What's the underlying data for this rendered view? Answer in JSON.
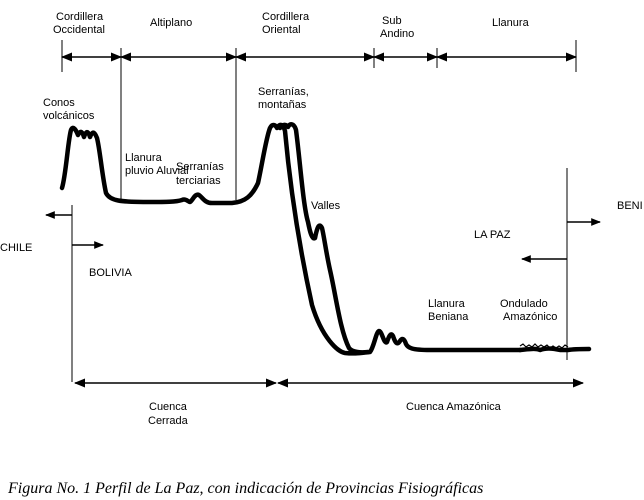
{
  "provinces": {
    "cordillera_occidental": [
      "Cordillera",
      "Occidental"
    ],
    "altiplano": "Altiplano",
    "cordillera_oriental": [
      "Cordillera",
      "Oriental"
    ],
    "sub_andino": [
      "Sub",
      "Andino"
    ],
    "llanura": "Llanura"
  },
  "features": {
    "conos_volcanicos": [
      "Conos",
      "volcánicos"
    ],
    "llanura_pluvio_aluvial": [
      "Llanura",
      "pluvio Aluvial"
    ],
    "serranias_terciarias": [
      "Serranías",
      "terciarias"
    ],
    "serranias_montanas": [
      "Serranías,",
      "montañas"
    ],
    "valles": "Valles",
    "llanura_beniana": [
      "Llanura",
      "Beniana"
    ],
    "ondulado_amazonico": [
      "Ondulado",
      "Amazónico"
    ]
  },
  "regions": {
    "chile": "CHILE",
    "bolivia": "BOLIVIA",
    "la_paz": "LA PAZ",
    "beni": "BENI"
  },
  "basins": {
    "cuenca_cerrada": [
      "Cuenca",
      "Cerrada"
    ],
    "cuenca_amazonica": "Cuenca Amazónica"
  },
  "caption": "Figura No. 1   Perfil de La Paz, con indicación de Provincias Fisiográficas"
}
